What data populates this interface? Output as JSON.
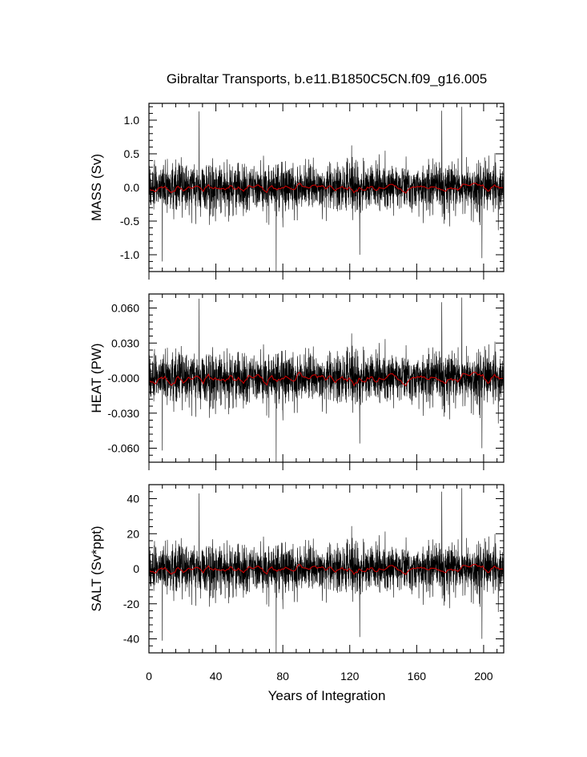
{
  "chart_data": {
    "title": "Gibraltar Transports, b.e11.B1850C5CN.f09_g16.005",
    "xlabel": "Years of Integration",
    "xlim": [
      0,
      212
    ],
    "xticks": [
      0,
      40,
      80,
      120,
      160,
      200
    ],
    "xtick_labels": [
      "0",
      "40",
      "80",
      "120",
      "160",
      "200"
    ],
    "series_colors": {
      "monthly": "#000000",
      "annual_mean": "#cc0000"
    },
    "panels": [
      {
        "type": "line",
        "ylabel": "MASS (Sv)",
        "ylim": [
          -1.25,
          1.25
        ],
        "yticks": [
          1.0,
          0.5,
          0.0,
          -0.5,
          -1.0
        ],
        "ytick_labels": [
          "1.0",
          "0.5",
          "0.0",
          "-0.5",
          "-1.0"
        ],
        "noise_sd": 0.18,
        "mean_amp": 0.05,
        "spikes": [
          [
            30,
            1.13
          ],
          [
            175,
            1.14
          ],
          [
            187,
            1.2
          ],
          [
            8,
            -1.1
          ],
          [
            76,
            -1.25
          ],
          [
            126,
            -1.0
          ],
          [
            199,
            -1.05
          ]
        ]
      },
      {
        "type": "line",
        "ylabel": "HEAT (PW)",
        "ylim": [
          -0.072,
          0.072
        ],
        "yticks": [
          0.06,
          0.03,
          0.0,
          -0.03,
          -0.06
        ],
        "ytick_labels": [
          "0.060",
          "0.030",
          "-0.000",
          "-0.030",
          "-0.060"
        ],
        "noise_sd": 0.011,
        "mean_amp": 0.004,
        "spikes": [
          [
            30,
            0.068
          ],
          [
            175,
            0.065
          ],
          [
            187,
            0.069
          ],
          [
            8,
            -0.062
          ],
          [
            76,
            -0.072
          ],
          [
            126,
            -0.056
          ],
          [
            199,
            -0.06
          ]
        ]
      },
      {
        "type": "line",
        "ylabel": "SALT (Sv*ppt)",
        "ylim": [
          -48,
          48
        ],
        "yticks": [
          40,
          20,
          0,
          -20,
          -40
        ],
        "ytick_labels": [
          "40",
          "20",
          "0",
          "-20",
          "-40"
        ],
        "noise_sd": 7.0,
        "mean_amp": 2.0,
        "spikes": [
          [
            30,
            43
          ],
          [
            175,
            44
          ],
          [
            187,
            46
          ],
          [
            8,
            -41
          ],
          [
            76,
            -48
          ],
          [
            126,
            -39
          ],
          [
            199,
            -40
          ]
        ]
      }
    ]
  }
}
